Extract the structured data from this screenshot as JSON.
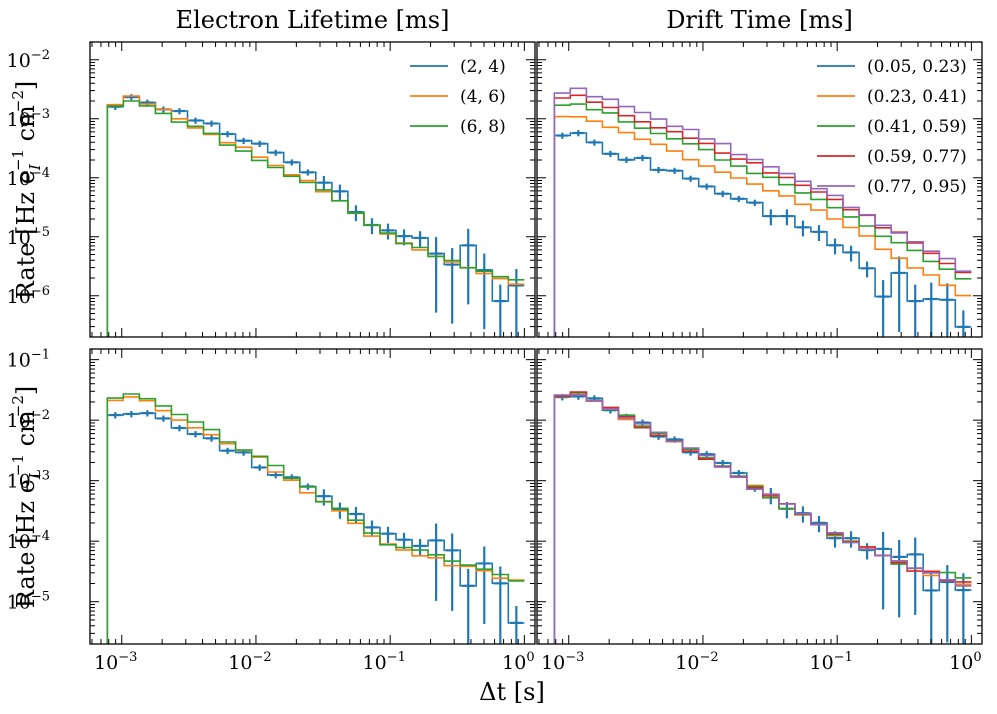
{
  "figure": {
    "col_titles": [
      "Electron Lifetime [ms]",
      "Drift Time [ms]"
    ],
    "xlabel": "Δt [s]",
    "ylabel_top": "Rate [Hz e_I^-1 cm^-2]",
    "ylabel_bottom": "Rate [Hz e_L^-1 cm^-2]",
    "colors": [
      "#1f77b4",
      "#ff7f0e",
      "#2ca02c",
      "#d62728",
      "#9467bd"
    ]
  },
  "chart_data": [
    {
      "id": "top-left",
      "type": "line",
      "drawstyle": "steps",
      "title": "Electron Lifetime [ms]",
      "xlabel": "",
      "ylabel": "Rate [Hz e_I^-1 cm^-2]",
      "xscale": "log",
      "yscale": "log",
      "xlim": [
        0.00058,
        1.2
      ],
      "ylim": [
        2e-07,
        0.02
      ],
      "xticks": [
        "10^-3",
        "10^-2",
        "10^-1",
        "10^0"
      ],
      "yticks": [
        "10^-2",
        "10^-3",
        "10^-4",
        "10^-5",
        "10^-6"
      ],
      "legend": {
        "location": "top-right",
        "entries": [
          "(2, 4)",
          "(4, 6)",
          "(6, 8)"
        ]
      },
      "series": [
        {
          "name": "(2, 4)",
          "color": "#1f77b4",
          "errorbars": true,
          "knots": [
            [
              -3.1,
              0.0016
            ],
            [
              -2.95,
              0.0021
            ],
            [
              -2.8,
              0.0019
            ],
            [
              -2.5,
              0.0011
            ],
            [
              -2,
              0.0004
            ],
            [
              -1.5,
              0.0001
            ],
            [
              -1.2,
              2e-05
            ],
            [
              -1,
              1.2e-05
            ],
            [
              -0.5,
              6e-06
            ],
            [
              -0.2,
              2e-06
            ],
            [
              0,
              7e-07
            ]
          ]
        },
        {
          "name": "(4, 6)",
          "color": "#ff7f0e",
          "errorbars": false,
          "knots": [
            [
              -3.1,
              0.0016
            ],
            [
              -2.95,
              0.0023
            ],
            [
              -2.8,
              0.0018
            ],
            [
              -2,
              0.00025
            ],
            [
              -1.5,
              6e-05
            ],
            [
              -1,
              1e-05
            ],
            [
              -0.5,
              3.5e-06
            ],
            [
              0,
              1.4e-06
            ]
          ]
        },
        {
          "name": "(6, 8)",
          "color": "#2ca02c",
          "errorbars": false,
          "knots": [
            [
              -3.1,
              0.0015
            ],
            [
              -2.95,
              0.0022
            ],
            [
              -2.8,
              0.0017
            ],
            [
              -2,
              0.00023
            ],
            [
              -1.5,
              6e-05
            ],
            [
              -1,
              1e-05
            ],
            [
              -0.5,
              3.5e-06
            ],
            [
              0,
              1.8e-06
            ]
          ]
        }
      ]
    },
    {
      "id": "top-right",
      "type": "line",
      "drawstyle": "steps",
      "title": "Drift Time [ms]",
      "xlabel": "",
      "ylabel": "",
      "xscale": "log",
      "yscale": "log",
      "xlim": [
        0.00058,
        1.2
      ],
      "ylim": [
        2e-07,
        0.02
      ],
      "xticks": [
        "10^-3",
        "10^-2",
        "10^-1",
        "10^0"
      ],
      "yticks": [],
      "legend": {
        "location": "top-right",
        "entries": [
          "(0.05, 0.23)",
          "(0.23, 0.41)",
          "(0.41, 0.59)",
          "(0.59, 0.77)",
          "(0.77, 0.95)"
        ]
      },
      "series": [
        {
          "name": "(0.05, 0.23)",
          "color": "#1f77b4",
          "errorbars": true,
          "knots": [
            [
              -3.1,
              0.0006
            ],
            [
              -2.95,
              0.0005
            ],
            [
              -2,
              8e-05
            ],
            [
              -1,
              8e-06
            ],
            [
              -0.5,
              1e-06
            ],
            [
              -0.2,
              5e-07
            ],
            [
              0,
              3e-07
            ]
          ]
        },
        {
          "name": "(0.23, 0.41)",
          "color": "#ff7f0e",
          "errorbars": false,
          "knots": [
            [
              -3.1,
              0.0011
            ],
            [
              -2.95,
              0.0012
            ],
            [
              -2,
              0.00018
            ],
            [
              -1,
              2e-05
            ],
            [
              -0.5,
              4e-06
            ],
            [
              0,
              9e-07
            ]
          ]
        },
        {
          "name": "(0.41, 0.59)",
          "color": "#2ca02c",
          "errorbars": false,
          "knots": [
            [
              -3.1,
              0.0017
            ],
            [
              -2.95,
              0.0019
            ],
            [
              -2,
              0.0003
            ],
            [
              -1,
              3e-05
            ],
            [
              -0.5,
              7e-06
            ],
            [
              0,
              1.5e-06
            ]
          ]
        },
        {
          "name": "(0.59, 0.77)",
          "color": "#d62728",
          "errorbars": false,
          "knots": [
            [
              -3.1,
              0.0022
            ],
            [
              -2.95,
              0.0026
            ],
            [
              -2,
              0.0004
            ],
            [
              -1,
              4e-05
            ],
            [
              -0.5,
              1e-05
            ],
            [
              0,
              2e-06
            ]
          ]
        },
        {
          "name": "(0.77, 0.95)",
          "color": "#9467bd",
          "errorbars": false,
          "knots": [
            [
              -3.1,
              0.0026
            ],
            [
              -2.95,
              0.0033
            ],
            [
              -2,
              0.0005
            ],
            [
              -1,
              4.5e-05
            ],
            [
              -0.5,
              1.1e-05
            ],
            [
              0,
              2.2e-06
            ]
          ]
        }
      ]
    },
    {
      "id": "bottom-left",
      "type": "line",
      "drawstyle": "steps",
      "title": "",
      "xlabel": "Δt [s]",
      "ylabel": "Rate [Hz e_L^-1 cm^-2]",
      "xscale": "log",
      "yscale": "log",
      "xlim": [
        0.00058,
        1.2
      ],
      "ylim": [
        2e-06,
        0.15
      ],
      "xticks": [
        "10^-3",
        "10^-2",
        "10^-1",
        "10^0"
      ],
      "yticks": [
        "10^-1",
        "10^-2",
        "10^-3",
        "10^-4",
        "10^-5"
      ],
      "series": [
        {
          "name": "(2, 4)",
          "color": "#1f77b4",
          "errorbars": true,
          "knots": [
            [
              -3.1,
              0.012
            ],
            [
              -2.95,
              0.015
            ],
            [
              -2.5,
              0.007
            ],
            [
              -2,
              0.002
            ],
            [
              -1.5,
              0.0006
            ],
            [
              -1,
              0.00012
            ],
            [
              -0.5,
              4e-05
            ],
            [
              -0.2,
              1.5e-05
            ],
            [
              0,
              8e-06
            ]
          ]
        },
        {
          "name": "(4, 6)",
          "color": "#ff7f0e",
          "errorbars": false,
          "knots": [
            [
              -3.1,
              0.02
            ],
            [
              -2.95,
              0.026
            ],
            [
              -2.8,
              0.02
            ],
            [
              -2,
              0.0025
            ],
            [
              -1,
              8e-05
            ],
            [
              -0.5,
              4e-05
            ],
            [
              0,
              2e-05
            ]
          ]
        },
        {
          "name": "(6, 8)",
          "color": "#2ca02c",
          "errorbars": false,
          "knots": [
            [
              -3.1,
              0.022
            ],
            [
              -2.95,
              0.028
            ],
            [
              -2.8,
              0.022
            ],
            [
              -2,
              0.0027
            ],
            [
              -1,
              9e-05
            ],
            [
              -0.5,
              4.5e-05
            ],
            [
              0,
              2e-05
            ]
          ]
        }
      ]
    },
    {
      "id": "bottom-right",
      "type": "line",
      "drawstyle": "steps",
      "title": "",
      "xlabel": "Δt [s]",
      "ylabel": "",
      "xscale": "log",
      "yscale": "log",
      "xlim": [
        0.00058,
        1.2
      ],
      "ylim": [
        2e-06,
        0.15
      ],
      "xticks": [
        "10^-3",
        "10^-2",
        "10^-1",
        "10^0"
      ],
      "yticks": [],
      "series": [
        {
          "name": "(0.05, 0.23)",
          "color": "#1f77b4",
          "errorbars": true,
          "knots": [
            [
              -3.1,
              0.024
            ],
            [
              -2.95,
              0.028
            ],
            [
              -2.5,
              0.009
            ],
            [
              -2,
              0.0025
            ],
            [
              -1.5,
              0.0006
            ],
            [
              -1,
              0.00012
            ],
            [
              -0.5,
              4e-05
            ],
            [
              -0.2,
              2e-05
            ],
            [
              0,
              1e-05
            ]
          ]
        },
        {
          "name": "(0.23, 0.41)",
          "color": "#ff7f0e",
          "errorbars": false,
          "knots": [
            [
              -3.1,
              0.024
            ],
            [
              -2.95,
              0.028
            ],
            [
              -2,
              0.0025
            ],
            [
              -1,
              0.00012
            ],
            [
              -0.5,
              4e-05
            ],
            [
              0,
              1.8e-05
            ]
          ]
        },
        {
          "name": "(0.41, 0.59)",
          "color": "#2ca02c",
          "errorbars": false,
          "knots": [
            [
              -3.1,
              0.024
            ],
            [
              -2.95,
              0.029
            ],
            [
              -2,
              0.0026
            ],
            [
              -1,
              0.00012
            ],
            [
              -0.5,
              4e-05
            ],
            [
              0,
              2.5e-05
            ]
          ]
        },
        {
          "name": "(0.59, 0.77)",
          "color": "#d62728",
          "errorbars": false,
          "knots": [
            [
              -3.1,
              0.024
            ],
            [
              -2.95,
              0.029
            ],
            [
              -2,
              0.0026
            ],
            [
              -1,
              0.00012
            ],
            [
              -0.5,
              4e-05
            ],
            [
              0,
              1.8e-05
            ]
          ]
        },
        {
          "name": "(0.77, 0.95)",
          "color": "#9467bd",
          "errorbars": false,
          "knots": [
            [
              -3.1,
              0.025
            ],
            [
              -2.95,
              0.03
            ],
            [
              -2,
              0.0026
            ],
            [
              -1,
              0.00012
            ],
            [
              -0.5,
              4e-05
            ],
            [
              0,
              1.6e-05
            ]
          ]
        }
      ]
    }
  ]
}
